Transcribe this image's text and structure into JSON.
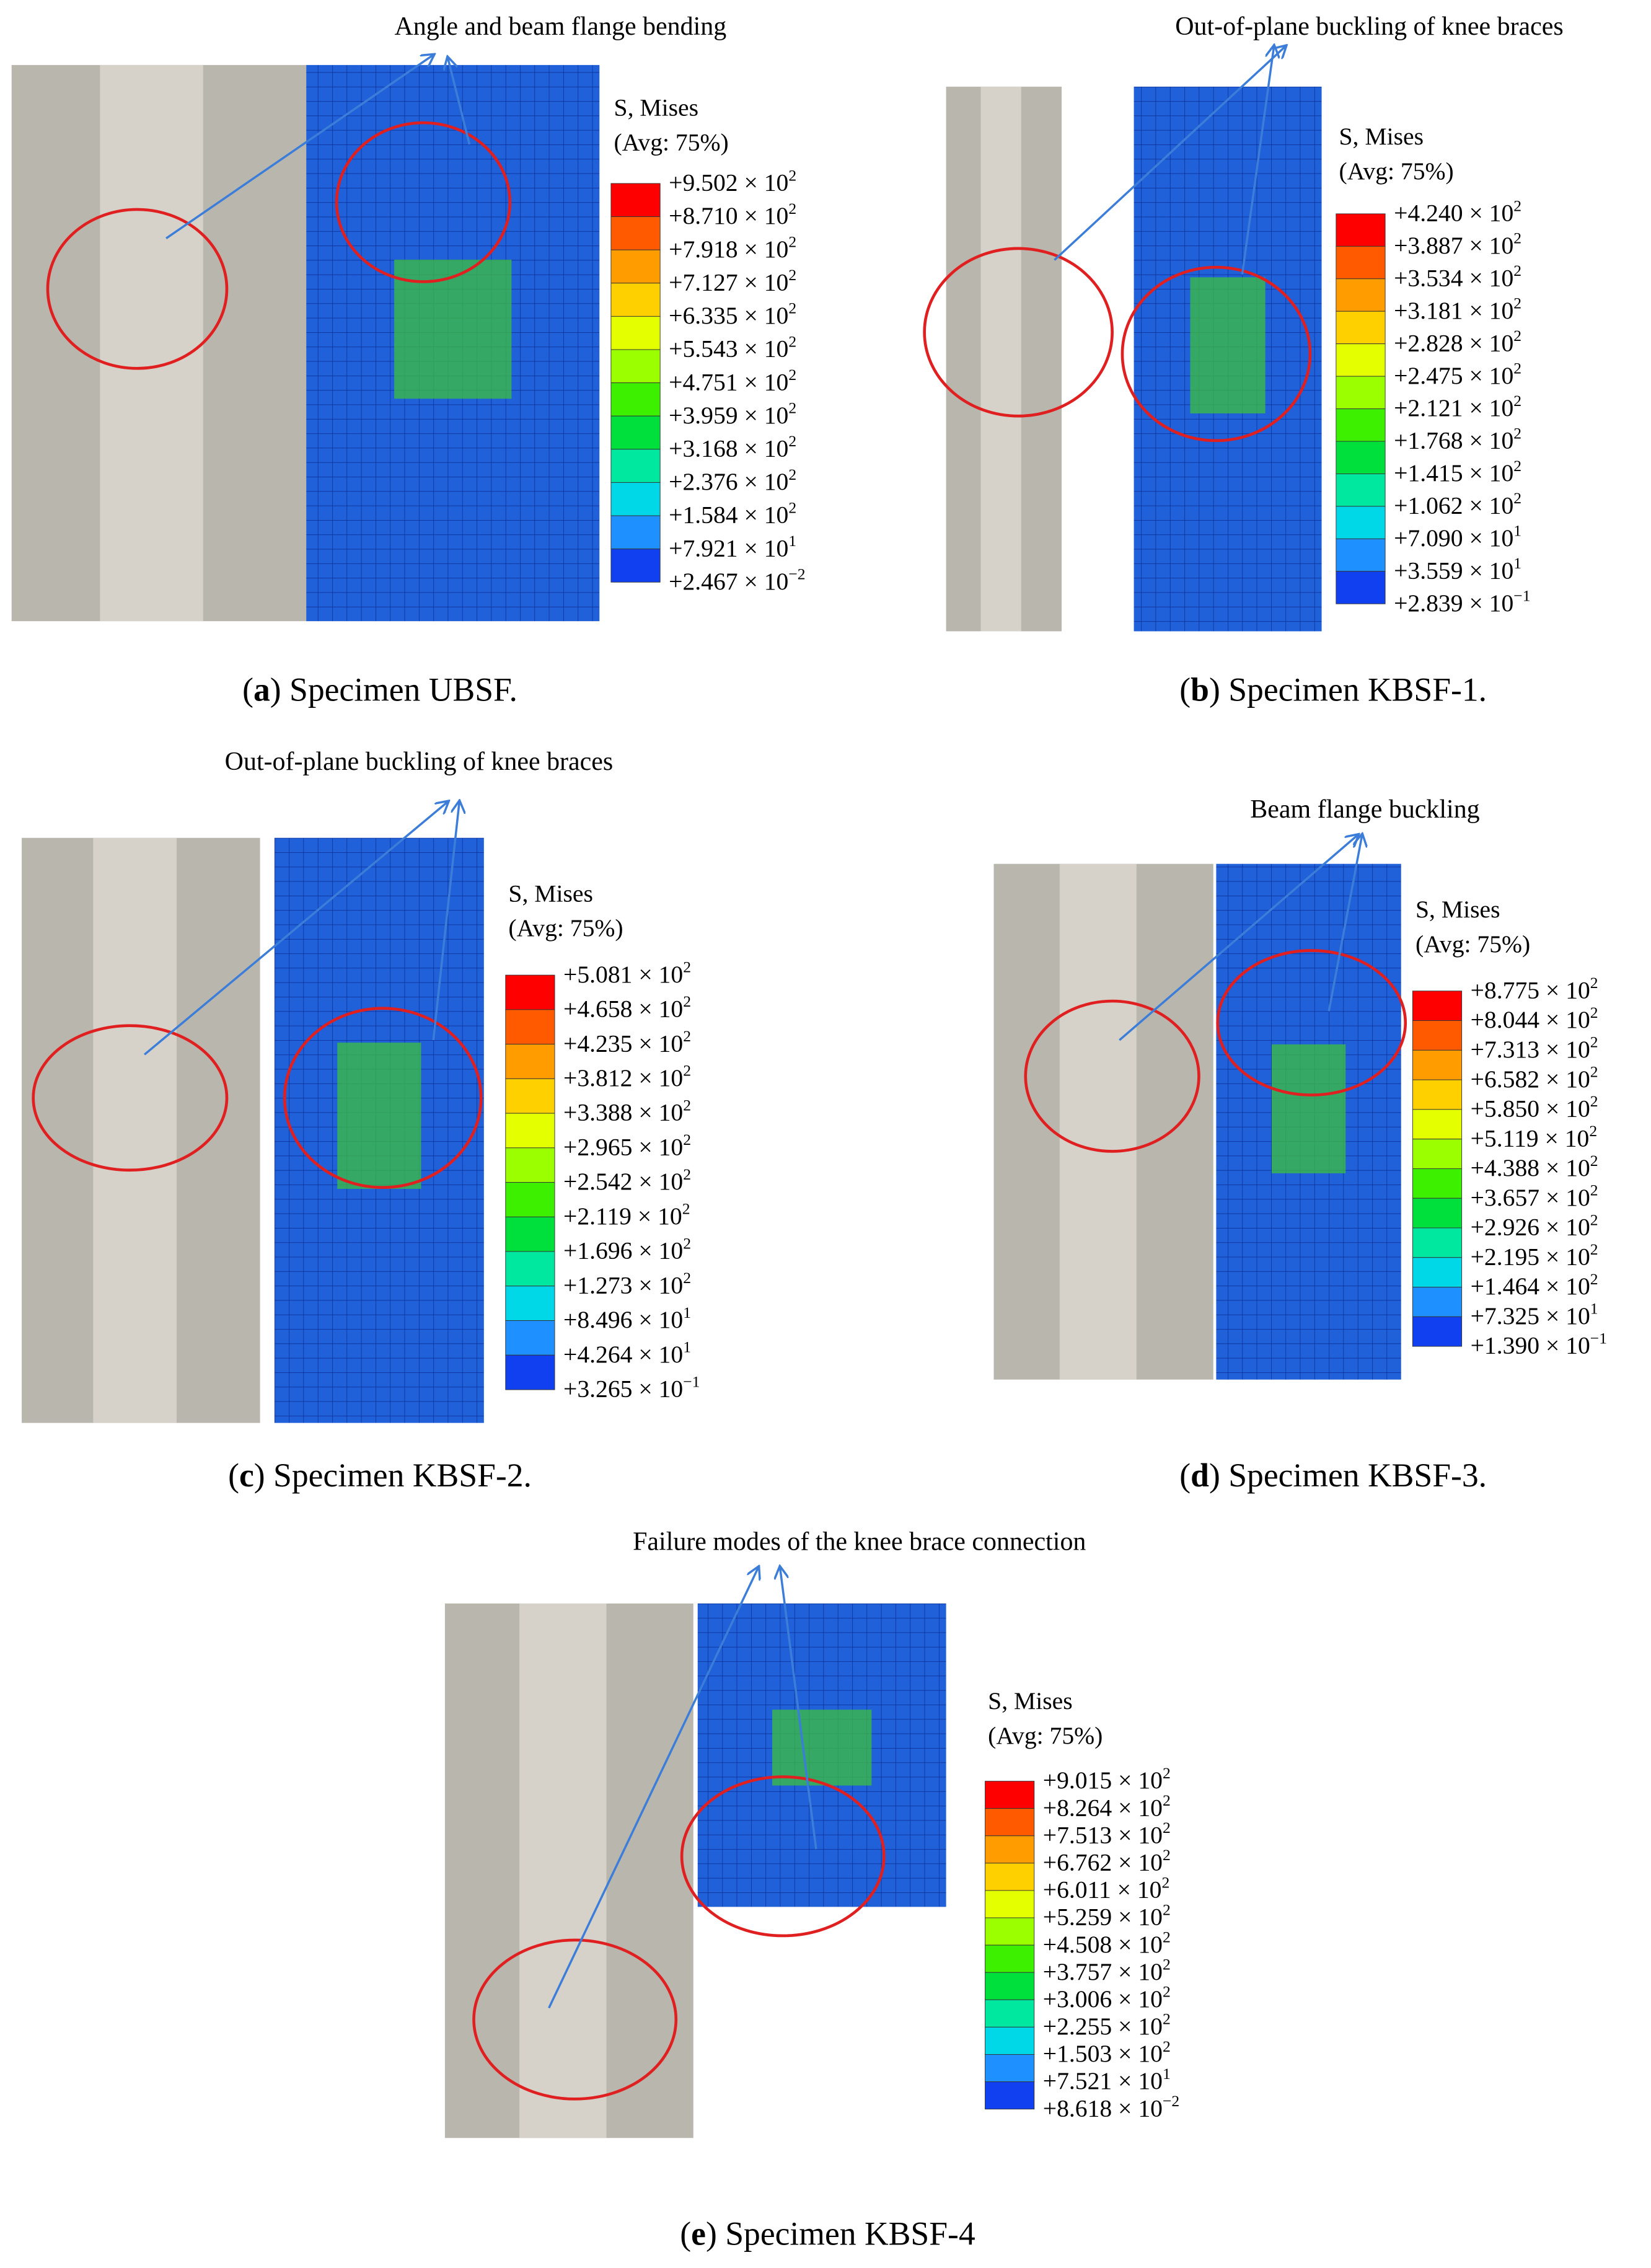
{
  "panels": [
    {
      "annotation": "Angle and beam flange bending",
      "legend_title": "S, Mises",
      "legend_avg": "(Avg: 75%)",
      "legend_values": [
        {
          "mantissa": "+9.502 × 10",
          "exponent": "2"
        },
        {
          "mantissa": "+8.710 × 10",
          "exponent": "2"
        },
        {
          "mantissa": "+7.918 × 10",
          "exponent": "2"
        },
        {
          "mantissa": "+7.127 × 10",
          "exponent": "2"
        },
        {
          "mantissa": "+6.335 × 10",
          "exponent": "2"
        },
        {
          "mantissa": "+5.543 × 10",
          "exponent": "2"
        },
        {
          "mantissa": "+4.751 × 10",
          "exponent": "2"
        },
        {
          "mantissa": "+3.959 × 10",
          "exponent": "2"
        },
        {
          "mantissa": "+3.168 × 10",
          "exponent": "2"
        },
        {
          "mantissa": "+2.376 × 10",
          "exponent": "2"
        },
        {
          "mantissa": "+1.584 × 10",
          "exponent": "2"
        },
        {
          "mantissa": "+7.921 × 10",
          "exponent": "1"
        },
        {
          "mantissa": "+2.467 × 10",
          "exponent": "−2"
        }
      ],
      "caption": {
        "open": "(",
        "letter": "a",
        "rest": ") Specimen UBSF."
      }
    },
    {
      "annotation": "Out-of-plane buckling of knee braces",
      "legend_title": "S, Mises",
      "legend_avg": "(Avg: 75%)",
      "legend_values": [
        {
          "mantissa": "+4.240 × 10",
          "exponent": "2"
        },
        {
          "mantissa": "+3.887 × 10",
          "exponent": "2"
        },
        {
          "mantissa": "+3.534 × 10",
          "exponent": "2"
        },
        {
          "mantissa": "+3.181 × 10",
          "exponent": "2"
        },
        {
          "mantissa": "+2.828 × 10",
          "exponent": "2"
        },
        {
          "mantissa": "+2.475 × 10",
          "exponent": "2"
        },
        {
          "mantissa": "+2.121 × 10",
          "exponent": "2"
        },
        {
          "mantissa": "+1.768 × 10",
          "exponent": "2"
        },
        {
          "mantissa": "+1.415 × 10",
          "exponent": "2"
        },
        {
          "mantissa": "+1.062 × 10",
          "exponent": "2"
        },
        {
          "mantissa": "+7.090 × 10",
          "exponent": "1"
        },
        {
          "mantissa": "+3.559 × 10",
          "exponent": "1"
        },
        {
          "mantissa": "+2.839 × 10",
          "exponent": "−1"
        }
      ],
      "caption": {
        "open": "(",
        "letter": "b",
        "rest": ") Specimen KBSF-1."
      }
    },
    {
      "annotation": "Out-of-plane buckling of knee braces",
      "legend_title": "S, Mises",
      "legend_avg": "(Avg: 75%)",
      "legend_values": [
        {
          "mantissa": "+5.081 × 10",
          "exponent": "2"
        },
        {
          "mantissa": "+4.658 × 10",
          "exponent": "2"
        },
        {
          "mantissa": "+4.235 × 10",
          "exponent": "2"
        },
        {
          "mantissa": "+3.812 × 10",
          "exponent": "2"
        },
        {
          "mantissa": "+3.388 × 10",
          "exponent": "2"
        },
        {
          "mantissa": "+2.965 × 10",
          "exponent": "2"
        },
        {
          "mantissa": "+2.542 × 10",
          "exponent": "2"
        },
        {
          "mantissa": "+2.119 × 10",
          "exponent": "2"
        },
        {
          "mantissa": "+1.696 × 10",
          "exponent": "2"
        },
        {
          "mantissa": "+1.273 × 10",
          "exponent": "2"
        },
        {
          "mantissa": "+8.496 × 10",
          "exponent": "1"
        },
        {
          "mantissa": "+4.264 × 10",
          "exponent": "1"
        },
        {
          "mantissa": "+3.265 × 10",
          "exponent": "−1"
        }
      ],
      "caption": {
        "open": "(",
        "letter": "c",
        "rest": ") Specimen KBSF-2."
      }
    },
    {
      "annotation": "Beam flange buckling",
      "legend_title": "S, Mises",
      "legend_avg": "(Avg: 75%)",
      "legend_values": [
        {
          "mantissa": "+8.775 × 10",
          "exponent": "2"
        },
        {
          "mantissa": "+8.044 × 10",
          "exponent": "2"
        },
        {
          "mantissa": "+7.313 × 10",
          "exponent": "2"
        },
        {
          "mantissa": "+6.582 × 10",
          "exponent": "2"
        },
        {
          "mantissa": "+5.850 × 10",
          "exponent": "2"
        },
        {
          "mantissa": "+5.119 × 10",
          "exponent": "2"
        },
        {
          "mantissa": "+4.388 × 10",
          "exponent": "2"
        },
        {
          "mantissa": "+3.657 × 10",
          "exponent": "2"
        },
        {
          "mantissa": "+2.926 × 10",
          "exponent": "2"
        },
        {
          "mantissa": "+2.195 × 10",
          "exponent": "2"
        },
        {
          "mantissa": "+1.464 × 10",
          "exponent": "2"
        },
        {
          "mantissa": "+7.325 × 10",
          "exponent": "1"
        },
        {
          "mantissa": "+1.390 × 10",
          "exponent": "−1"
        }
      ],
      "caption": {
        "open": "(",
        "letter": "d",
        "rest": ") Specimen KBSF-3."
      }
    },
    {
      "annotation": "Failure modes of the knee brace connection",
      "legend_title": "S, Mises",
      "legend_avg": "(Avg: 75%)",
      "legend_values": [
        {
          "mantissa": "+9.015 × 10",
          "exponent": "2"
        },
        {
          "mantissa": "+8.264 × 10",
          "exponent": "2"
        },
        {
          "mantissa": "+7.513 × 10",
          "exponent": "2"
        },
        {
          "mantissa": "+6.762 × 10",
          "exponent": "2"
        },
        {
          "mantissa": "+6.011 × 10",
          "exponent": "2"
        },
        {
          "mantissa": "+5.259 × 10",
          "exponent": "2"
        },
        {
          "mantissa": "+4.508 × 10",
          "exponent": "2"
        },
        {
          "mantissa": "+3.757 × 10",
          "exponent": "2"
        },
        {
          "mantissa": "+3.006 × 10",
          "exponent": "2"
        },
        {
          "mantissa": "+2.255 × 10",
          "exponent": "2"
        },
        {
          "mantissa": "+1.503 × 10",
          "exponent": "2"
        },
        {
          "mantissa": "+7.521 × 10",
          "exponent": "1"
        },
        {
          "mantissa": "+8.618 × 10",
          "exponent": "−2"
        }
      ],
      "caption": {
        "open": "(",
        "letter": "e",
        "rest": ") Specimen KBSF-4"
      }
    }
  ]
}
